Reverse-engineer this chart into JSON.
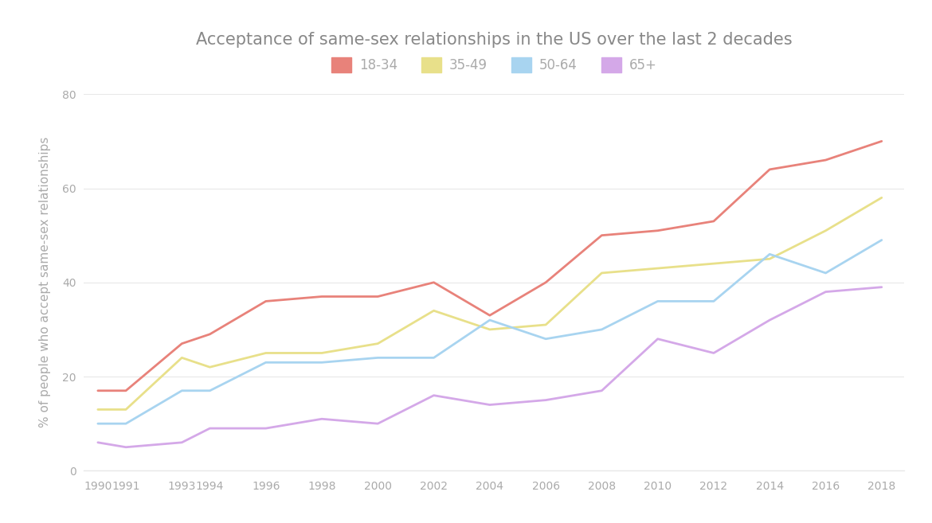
{
  "title": "Acceptance of same-sex relationships in the US over the last 2 decades",
  "ylabel": "% of people who accept same-sex relationships",
  "years": [
    1990,
    1991,
    1993,
    1994,
    1996,
    1998,
    2000,
    2002,
    2004,
    2006,
    2008,
    2010,
    2012,
    2014,
    2016,
    2018
  ],
  "series": {
    "18-34": [
      17,
      17,
      27,
      29,
      36,
      37,
      37,
      40,
      33,
      40,
      50,
      51,
      53,
      64,
      66,
      70
    ],
    "35-49": [
      13,
      13,
      24,
      22,
      25,
      25,
      27,
      34,
      30,
      31,
      42,
      43,
      44,
      45,
      51,
      58
    ],
    "50-64": [
      10,
      10,
      17,
      17,
      23,
      23,
      24,
      24,
      32,
      28,
      30,
      36,
      36,
      46,
      42,
      49
    ],
    "65+": [
      6,
      5,
      6,
      9,
      9,
      11,
      10,
      16,
      14,
      15,
      17,
      28,
      25,
      32,
      38,
      39
    ]
  },
  "colors": {
    "18-34": "#e8827a",
    "35-49": "#e8e08a",
    "50-64": "#a8d4f0",
    "65+": "#d4a8e8"
  },
  "ylim": [
    0,
    80
  ],
  "xlim": [
    1989.5,
    2018.8
  ],
  "background_color": "#ffffff",
  "grid_color": "#e8e8e8",
  "title_color": "#888888",
  "tick_color": "#aaaaaa",
  "legend_fontsize": 12,
  "title_fontsize": 15,
  "ylabel_fontsize": 11,
  "line_width": 2.0
}
